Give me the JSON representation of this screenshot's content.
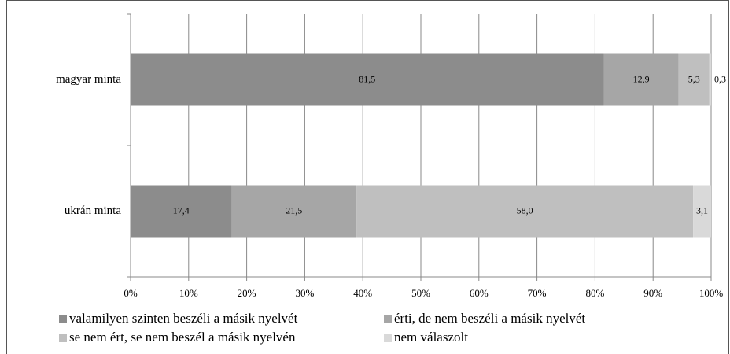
{
  "chart_data": {
    "type": "stacked-barh",
    "categories": [
      "magyar minta",
      "ukrán minta"
    ],
    "series": [
      {
        "name": "valamilyen szinten beszéli a másik nyelvét",
        "color": "#8c8c8c",
        "values": [
          81.5,
          17.4
        ],
        "value_labels": [
          "81,5",
          "17,4"
        ]
      },
      {
        "name": "érti, de nem beszéli a másik nyelvét",
        "color": "#a6a6a6",
        "values": [
          12.9,
          21.5
        ],
        "value_labels": [
          "12,9",
          "21,5"
        ]
      },
      {
        "name": "se nem ért, se nem beszél a másik nyelvén",
        "color": "#bfbfbf",
        "values": [
          5.3,
          58.0
        ],
        "value_labels": [
          "5,3",
          "58,0"
        ]
      },
      {
        "name": "nem válaszolt",
        "color": "#d9d9d9",
        "values": [
          0.3,
          3.1
        ],
        "value_labels": [
          "0,3",
          "3,1"
        ]
      }
    ],
    "xlim": [
      0,
      100
    ],
    "xticks": [
      {
        "value": 0,
        "label": "0%"
      },
      {
        "value": 10,
        "label": "10%"
      },
      {
        "value": 20,
        "label": "20%"
      },
      {
        "value": 30,
        "label": "30%"
      },
      {
        "value": 40,
        "label": "40%"
      },
      {
        "value": 50,
        "label": "50%"
      },
      {
        "value": 60,
        "label": "60%"
      },
      {
        "value": 70,
        "label": "70%"
      },
      {
        "value": 80,
        "label": "80%"
      },
      {
        "value": 90,
        "label": "90%"
      },
      {
        "value": 100,
        "label": "100%"
      }
    ],
    "grid": true
  }
}
